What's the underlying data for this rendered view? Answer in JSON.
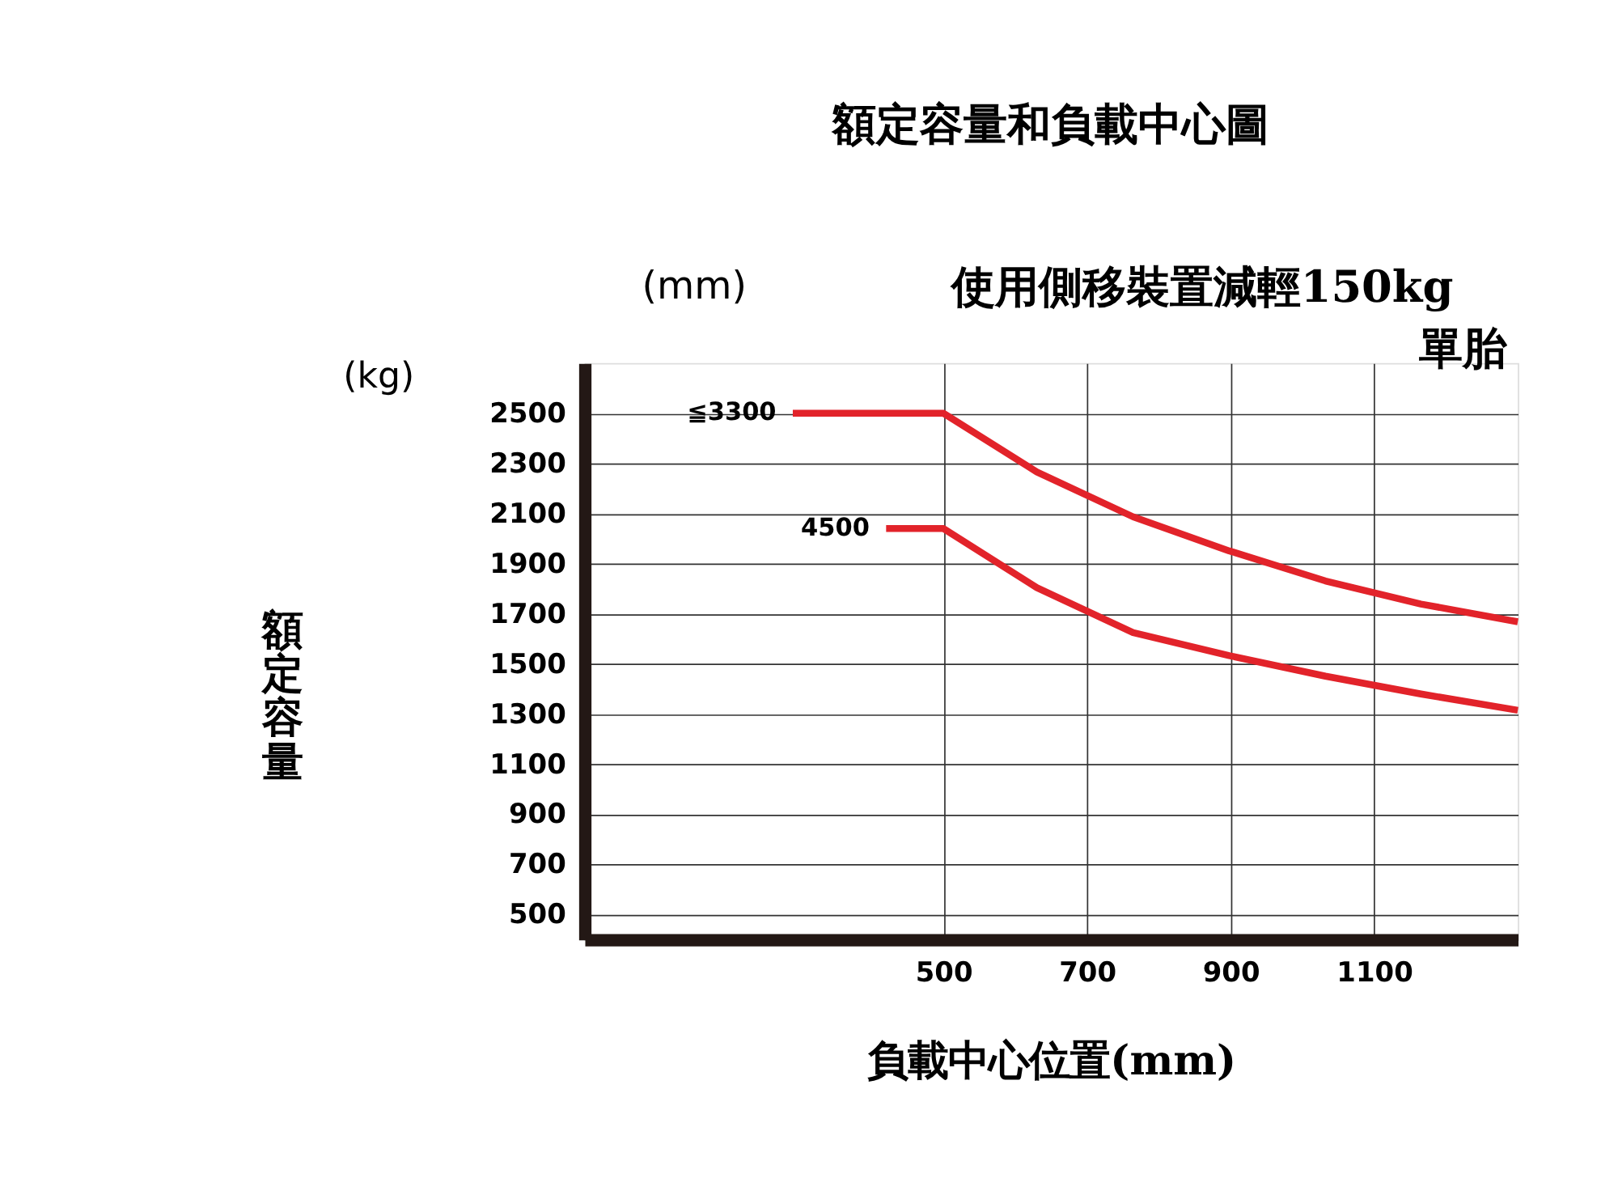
{
  "chart_data": {
    "type": "line",
    "title": "額定容量和負載中心圖",
    "xlabel": "負載中心位置(mm)",
    "ylabel": "額定容量",
    "x": [
      290,
      500,
      630,
      764,
      898,
      1032,
      1165,
      1300
    ],
    "series": [
      {
        "name": "≦3300",
        "color": "#e2232a",
        "values": [
          2500,
          2500,
          2266,
          2087,
          1951,
          1831,
          1739,
          1668
        ]
      },
      {
        "name": "4500",
        "color": "#e2232a",
        "x": [
          420,
          500,
          630,
          764,
          898,
          1032,
          1165,
          1300
        ],
        "values": [
          2040,
          2040,
          1804,
          1625,
          1533,
          1451,
          1380,
          1315
        ]
      }
    ],
    "xlim": [
      0,
      1300
    ],
    "xticks": [
      500,
      700,
      900,
      1100
    ],
    "ylim": [
      400,
      2700
    ],
    "yticks": [
      500,
      700,
      900,
      1100,
      1300,
      1500,
      1700,
      1900,
      2100,
      2300,
      2500
    ],
    "grid": true,
    "legend": false,
    "marker": "none",
    "line_style": "solid",
    "annotations": [
      "(mm)",
      "使用側移裝置減輕150kg",
      "單胎",
      "(kg)"
    ]
  }
}
